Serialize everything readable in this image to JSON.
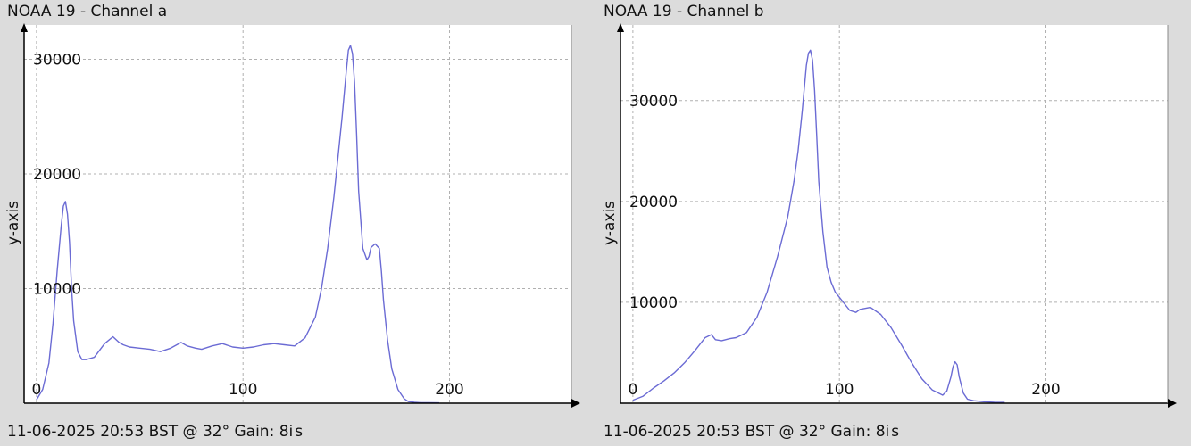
{
  "panels": [
    {
      "title": "NOAA 19 - Channel a",
      "footer": "11-06-2025 20:53 BST @ 32° Gain: 8",
      "footer_suffix": "is"
    },
    {
      "title": "NOAA 19 - Channel b",
      "footer": "11-06-2025 20:53 BST @ 32° Gain: 8",
      "footer_suffix": "is"
    }
  ],
  "colors": {
    "background": "#dcdcdc",
    "plot_bg": "#ffffff",
    "line": "#6b6bd4",
    "grid": "#b0b0b0",
    "axis": "#000000"
  },
  "chart_data": [
    {
      "type": "line",
      "title": "NOAA 19 - Channel a",
      "xlabel": "",
      "ylabel": "y-axis",
      "xlim": [
        -6,
        259
      ],
      "ylim": [
        0,
        33000
      ],
      "xticks": [
        0,
        100,
        200
      ],
      "yticks": [
        10000,
        20000,
        30000
      ],
      "tick_labels": {
        "x": [
          "0",
          "100",
          "200"
        ],
        "y": [
          "10000",
          "20000",
          "30000"
        ]
      },
      "grid": true,
      "series": [
        {
          "x": [
            0,
            3,
            6,
            8,
            10,
            12,
            13,
            14,
            15,
            16,
            17,
            18,
            20,
            22,
            24,
            28,
            33,
            37,
            40,
            42,
            45,
            50,
            55,
            60,
            65,
            70,
            73,
            77,
            80,
            85,
            90,
            95,
            100,
            105,
            110,
            115,
            120,
            125,
            130,
            135,
            138,
            141,
            144,
            146,
            148,
            150,
            151,
            152,
            153,
            154,
            155,
            156,
            158,
            160,
            161,
            162,
            164,
            166,
            167,
            168,
            170,
            172,
            175,
            178,
            180,
            183,
            186,
            190,
            195
          ],
          "values": [
            300,
            1200,
            3500,
            7000,
            11500,
            15500,
            17200,
            17600,
            16500,
            14000,
            10000,
            7200,
            4500,
            3800,
            3800,
            4000,
            5200,
            5800,
            5300,
            5100,
            4900,
            4800,
            4700,
            4500,
            4800,
            5300,
            5000,
            4800,
            4700,
            5000,
            5200,
            4900,
            4800,
            4900,
            5100,
            5200,
            5100,
            5000,
            5700,
            7500,
            10000,
            13500,
            18000,
            21500,
            25000,
            29000,
            30800,
            31200,
            30500,
            28000,
            23500,
            18500,
            13500,
            12500,
            12800,
            13600,
            13900,
            13500,
            11500,
            9000,
            5500,
            3000,
            1200,
            400,
            150,
            80,
            50,
            40,
            30
          ]
        }
      ]
    },
    {
      "type": "line",
      "title": "NOAA 19 - Channel b",
      "xlabel": "",
      "ylabel": "y-axis",
      "xlim": [
        -6,
        259
      ],
      "ylim": [
        0,
        37500
      ],
      "xticks": [
        0,
        100,
        200
      ],
      "yticks": [
        10000,
        20000,
        30000
      ],
      "tick_labels": {
        "x": [
          "0",
          "100",
          "200"
        ],
        "y": [
          "10000",
          "20000",
          "30000"
        ]
      },
      "grid": true,
      "series": [
        {
          "x": [
            0,
            5,
            10,
            15,
            20,
            25,
            30,
            35,
            38,
            40,
            43,
            47,
            50,
            55,
            60,
            65,
            70,
            75,
            78,
            80,
            82,
            84,
            85,
            86,
            87,
            88,
            89,
            90,
            92,
            94,
            96,
            98,
            100,
            105,
            108,
            110,
            115,
            120,
            125,
            130,
            135,
            140,
            145,
            150,
            152,
            154,
            155,
            156,
            157,
            158,
            160,
            162,
            165,
            170,
            175,
            180
          ],
          "values": [
            300,
            700,
            1500,
            2200,
            3000,
            4000,
            5200,
            6500,
            6800,
            6300,
            6200,
            6400,
            6500,
            7000,
            8500,
            11000,
            14500,
            18500,
            22000,
            25000,
            29000,
            33500,
            34700,
            35000,
            34000,
            31000,
            26500,
            22000,
            17000,
            13500,
            12000,
            11000,
            10500,
            9200,
            9000,
            9300,
            9500,
            8800,
            7500,
            5800,
            4000,
            2400,
            1300,
            800,
            1200,
            2600,
            3600,
            4100,
            3800,
            2600,
            1000,
            400,
            250,
            150,
            100,
            80
          ]
        }
      ]
    }
  ]
}
